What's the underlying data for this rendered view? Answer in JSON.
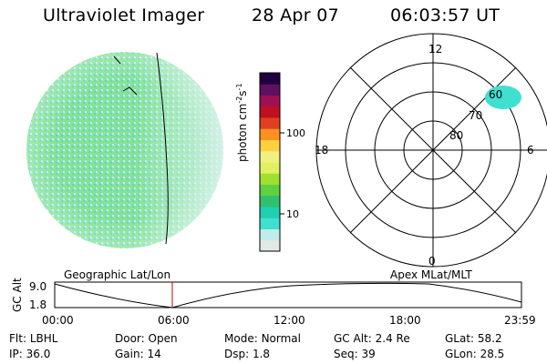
{
  "header": {
    "instrument": "Ultraviolet Imager",
    "date": "28 Apr 07",
    "time": "06:03:57 UT"
  },
  "colorbar": {
    "label_main": "photon cm",
    "label_exp1": "-2",
    "label_mid": "s",
    "label_exp2": "-1",
    "ticks": [
      "100",
      "10"
    ],
    "colors": [
      "#e0e8e8",
      "#c0ecec",
      "#40e0d0",
      "#20d0b0",
      "#30c070",
      "#60d040",
      "#a0e030",
      "#e0f060",
      "#f0f080",
      "#ffd040",
      "#ff9020",
      "#e04020",
      "#c01020",
      "#a01050",
      "#601060",
      "#200040"
    ]
  },
  "polar_plot": {
    "mlt_labels": {
      "top": "12",
      "left": "18",
      "right": "6",
      "bottom": "0"
    },
    "lat_labels": [
      "60",
      "70",
      "80"
    ],
    "blob_color": "#40e0d0"
  },
  "image": {
    "colors": {
      "bg": "#7ee0b0",
      "accent": "#9be84a",
      "light": "#c7ecec"
    }
  },
  "timeline": {
    "left_title": "Geographic Lat/Lon",
    "right_title": "Apex MLat/MLT",
    "axis_label": "GC Alt",
    "y_top": "9.0",
    "y_bottom": "1.8",
    "x_ticks": [
      "00:00",
      "06:00",
      "12:00",
      "18:00",
      "23:59"
    ],
    "marker_color": "#c00000"
  },
  "info": {
    "row1": [
      {
        "label": "Flt:",
        "value": "LBHL"
      },
      {
        "label": "Door:",
        "value": "Open"
      },
      {
        "label": "Mode:",
        "value": "Normal"
      },
      {
        "label": "GC Alt:",
        "value": "2.4 Re"
      },
      {
        "label": "GLat:",
        "value": "58.2"
      }
    ],
    "row2": [
      {
        "label": "IP:",
        "value": "36.0"
      },
      {
        "label": "Gain:",
        "value": "14"
      },
      {
        "label": "Dsp:",
        "value": "1.8"
      },
      {
        "label": "Seq:",
        "value": "39"
      },
      {
        "label": "GLon:",
        "value": "28.5"
      }
    ]
  }
}
